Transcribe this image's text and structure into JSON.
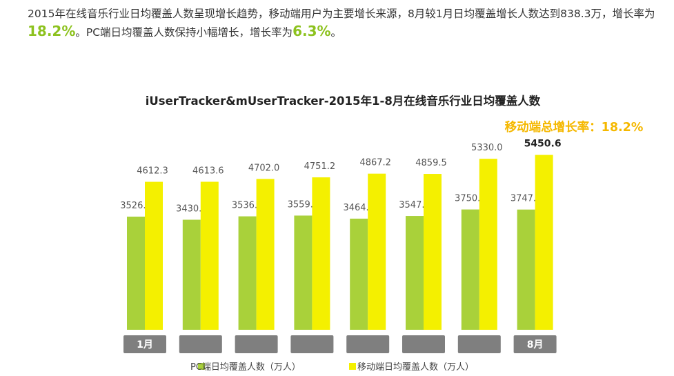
{
  "summary": {
    "text_1": "2015年在线音乐行业日均覆盖人数呈现增长趋势，移动端用户为主要增长来源，8月较1月日均覆盖增长人数达到838.3万，增长率为",
    "highlight_1": "18.2%",
    "text_2": "。PC端日均覆盖人数保持小幅增长，增长率为",
    "highlight_2": "6.3%",
    "text_3": "。"
  },
  "colors": {
    "pc": "#a9d13a",
    "mobile": "#f4f000",
    "category_box": "#7f7f7f",
    "annotation": "#f5b800",
    "highlight": "#8dc21f"
  },
  "chart_data": {
    "type": "bar",
    "title": "iUserTracker&mUserTracker-2015年1-8月在线音乐行业日均覆盖人数",
    "annotation": "移动端总增长率：18.2%",
    "categories": [
      "1月",
      "",
      "",
      "",
      "",
      "",
      "",
      "8月"
    ],
    "series": [
      {
        "name": "PC端日均覆盖人数（万人）",
        "values": [
          3526.8,
          3430.2,
          3536.2,
          3559.9,
          3464.2,
          3547.3,
          3750.7,
          3747.6
        ],
        "labels": [
          "3526.8",
          "3430.2",
          "3536.2",
          "3559.9",
          "3464.2",
          "3547.3",
          "3750.7",
          "3747.6"
        ]
      },
      {
        "name": "移动端日均覆盖人数（万人）",
        "values": [
          4612.3,
          4613.6,
          4702.0,
          4751.2,
          4867.2,
          4859.5,
          5330.0,
          5450.6
        ],
        "labels": [
          "4612.3",
          "4613.6",
          "4702.0",
          "4751.2",
          "4867.2",
          "4859.5",
          "5330.0",
          "5450.6"
        ]
      }
    ],
    "ylim": [
      0,
      6000
    ],
    "grid": false,
    "legend_position": "bottom",
    "axis_visible": false
  }
}
